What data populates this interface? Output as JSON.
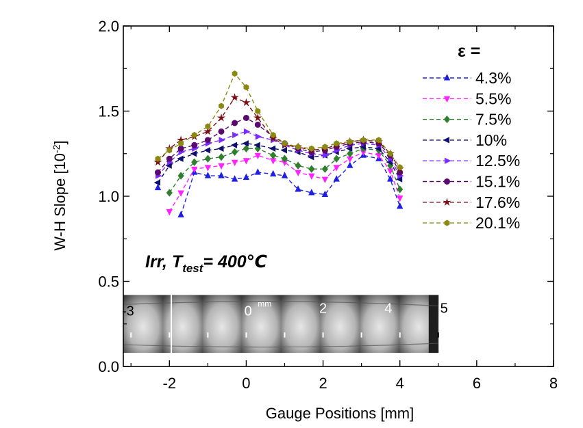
{
  "chart_data": {
    "type": "line",
    "title": "",
    "xlabel": "Gauge Positions [mm]",
    "ylabel_main": "W-H Slope [10",
    "ylabel_sup": "-2",
    "ylabel_end": "]",
    "xlim": [
      -3.2,
      8
    ],
    "ylim": [
      0,
      2.0
    ],
    "xticks": [
      -2,
      0,
      2,
      4,
      6,
      8
    ],
    "xtick_labels": [
      "-2",
      "0",
      "2",
      "4",
      "6",
      "8"
    ],
    "yticks": [
      0.0,
      0.5,
      1.0,
      1.5,
      2.0
    ],
    "ytick_labels": [
      "0.0",
      "0.5",
      "1.0",
      "1.5",
      "2.0"
    ],
    "legend_title": "ε =",
    "annotation": {
      "main": "Irr, T",
      "sub": "test",
      "rest": "= 400℃"
    },
    "inset": {
      "description": "specimen gauge micrograph strip",
      "labels": [
        "-3",
        "0",
        "mm",
        "2",
        "4",
        "5"
      ],
      "x_range": [
        -3.2,
        5.0
      ],
      "y_range": [
        0.08,
        0.42
      ]
    },
    "x": [
      -2.3,
      -2.0,
      -1.7,
      -1.35,
      -1.0,
      -0.65,
      -0.3,
      0.0,
      0.3,
      0.7,
      1.0,
      1.35,
      1.7,
      2.05,
      2.35,
      2.7,
      3.05,
      3.45,
      3.75,
      4.0
    ],
    "series": [
      {
        "name": "4.3%",
        "color": "#1f1fe0",
        "marker": "triangle-up",
        "values": [
          1.05,
          null,
          0.89,
          1.14,
          1.12,
          1.12,
          1.1,
          1.11,
          1.14,
          1.13,
          1.12,
          1.04,
          1.02,
          1.01,
          1.1,
          1.18,
          1.24,
          1.22,
          1.1,
          0.94
        ]
      },
      {
        "name": "5.5%",
        "color": "#ff22ff",
        "marker": "triangle-down",
        "values": [
          null,
          0.91,
          1.02,
          1.16,
          1.17,
          1.18,
          1.2,
          1.21,
          1.24,
          1.21,
          1.2,
          1.14,
          1.12,
          1.1,
          1.17,
          1.22,
          1.26,
          1.24,
          1.15,
          0.99
        ]
      },
      {
        "name": "7.5%",
        "color": "#2f7f2f",
        "marker": "diamond",
        "values": [
          null,
          1.02,
          1.12,
          1.2,
          1.22,
          1.23,
          1.26,
          1.28,
          1.28,
          1.24,
          1.22,
          1.18,
          1.16,
          1.16,
          1.22,
          1.25,
          1.28,
          1.27,
          1.18,
          1.04
        ]
      },
      {
        "name": "10%",
        "color": "#0f0f6e",
        "marker": "triangle-left",
        "values": [
          1.08,
          1.18,
          1.22,
          1.25,
          1.27,
          1.28,
          1.3,
          1.31,
          1.3,
          1.28,
          1.27,
          1.26,
          1.23,
          1.24,
          1.26,
          1.28,
          1.29,
          1.28,
          1.2,
          1.1
        ]
      },
      {
        "name": "12.5%",
        "color": "#7b2cff",
        "marker": "triangle-right",
        "values": [
          1.12,
          1.2,
          1.26,
          1.28,
          1.31,
          1.33,
          1.36,
          1.38,
          1.35,
          1.33,
          1.3,
          1.27,
          1.25,
          1.24,
          1.27,
          1.3,
          1.31,
          1.3,
          1.22,
          1.12
        ]
      },
      {
        "name": "15.1%",
        "color": "#5a0a6e",
        "marker": "circle",
        "values": [
          1.14,
          1.22,
          1.28,
          1.3,
          1.33,
          1.38,
          1.43,
          1.46,
          1.42,
          1.35,
          1.31,
          1.28,
          1.26,
          1.27,
          1.29,
          1.31,
          1.32,
          1.31,
          1.24,
          1.14
        ]
      },
      {
        "name": "17.6%",
        "color": "#7a0f14",
        "marker": "star",
        "values": [
          1.2,
          1.28,
          1.33,
          1.35,
          1.38,
          1.46,
          1.58,
          1.55,
          1.46,
          1.34,
          1.3,
          1.29,
          1.27,
          1.28,
          1.3,
          1.32,
          1.33,
          1.32,
          1.25,
          1.16
        ]
      },
      {
        "name": "20.1%",
        "color": "#8a8a12",
        "marker": "hexagon",
        "values": [
          1.22,
          1.27,
          1.31,
          1.36,
          1.41,
          1.53,
          1.72,
          1.64,
          1.5,
          1.36,
          1.31,
          1.29,
          1.28,
          1.29,
          1.31,
          1.32,
          1.33,
          1.33,
          1.25,
          1.17
        ]
      }
    ]
  }
}
